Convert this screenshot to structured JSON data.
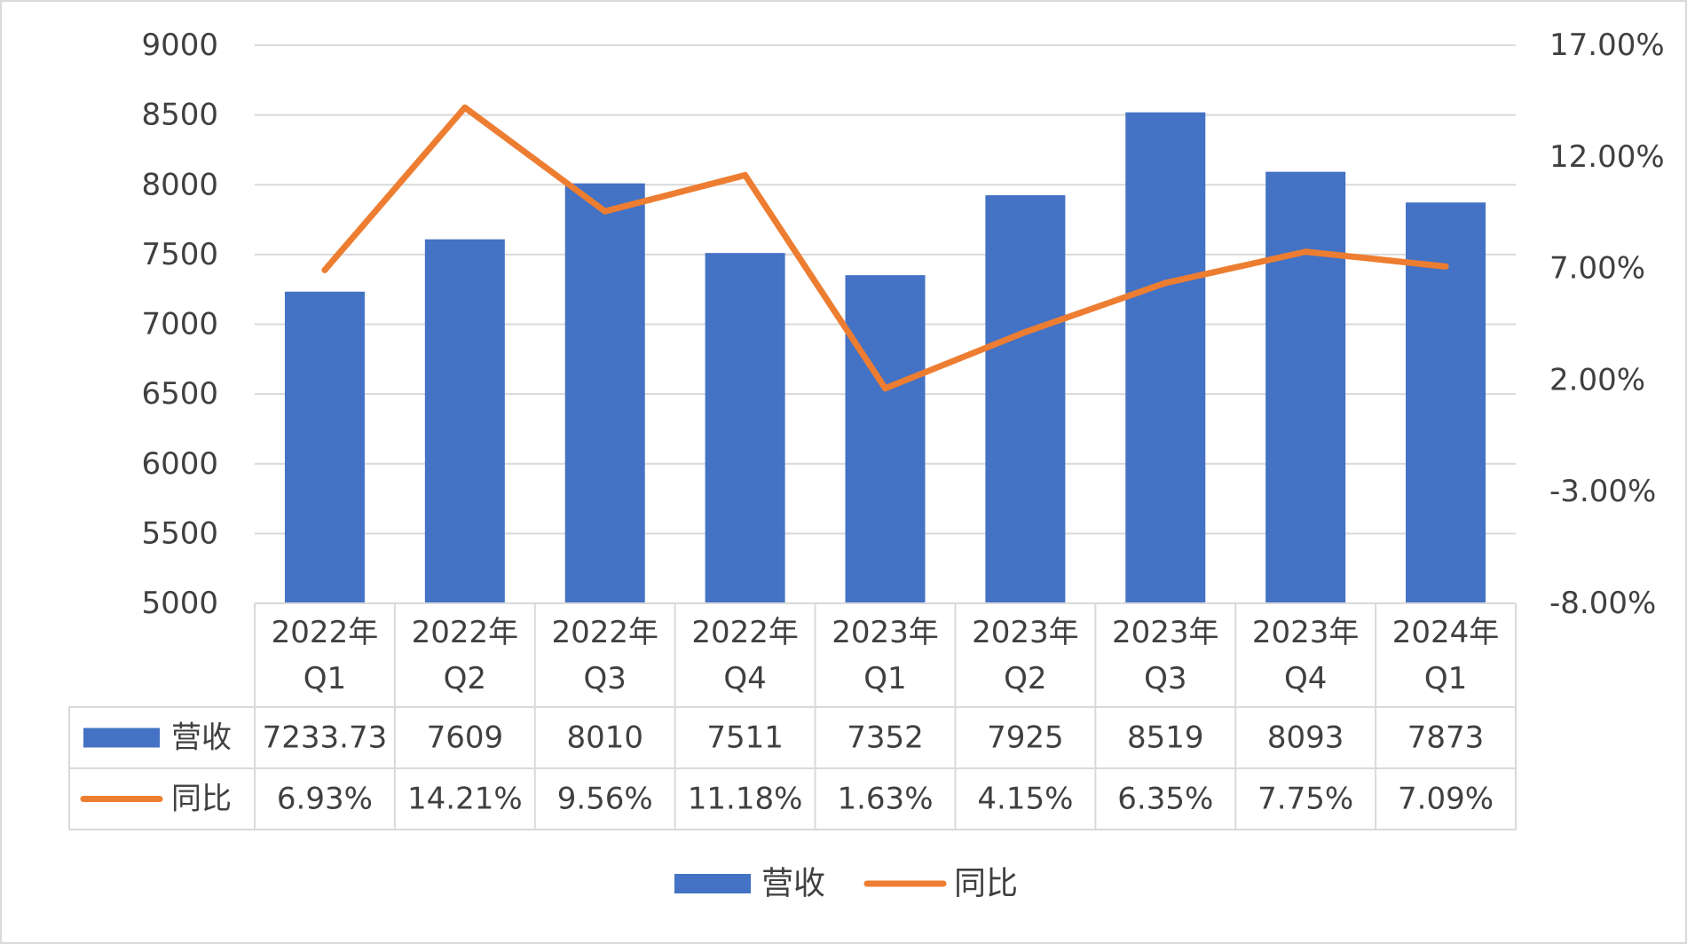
{
  "chart_data": {
    "type": "bar",
    "categories": [
      "2022年 Q1",
      "2022年 Q2",
      "2022年 Q3",
      "2022年 Q4",
      "2023年 Q1",
      "2023年 Q2",
      "2023年 Q3",
      "2023年 Q4",
      "2024年 Q1"
    ],
    "category_lines": [
      [
        "2022年",
        "Q1"
      ],
      [
        "2022年",
        "Q2"
      ],
      [
        "2022年",
        "Q3"
      ],
      [
        "2022年",
        "Q4"
      ],
      [
        "2023年",
        "Q1"
      ],
      [
        "2023年",
        "Q2"
      ],
      [
        "2023年",
        "Q3"
      ],
      [
        "2023年",
        "Q4"
      ],
      [
        "2024年",
        "Q1"
      ]
    ],
    "series": [
      {
        "name": "营收",
        "type": "bar",
        "axis": "left",
        "color": "#4472C4",
        "values": [
          7233.73,
          7609,
          8010,
          7511,
          7352,
          7925,
          8519,
          8093,
          7873
        ],
        "labels": [
          "7233.73",
          "7609",
          "8010",
          "7511",
          "7352",
          "7925",
          "8519",
          "8093",
          "7873"
        ]
      },
      {
        "name": "同比",
        "type": "line",
        "axis": "right",
        "color": "#ED7D31",
        "values": [
          6.93,
          14.21,
          9.56,
          11.18,
          1.63,
          4.15,
          6.35,
          7.75,
          7.09
        ],
        "labels": [
          "6.93%",
          "14.21%",
          "9.56%",
          "11.18%",
          "1.63%",
          "4.15%",
          "6.35%",
          "7.75%",
          "7.09%"
        ]
      }
    ],
    "y_left": {
      "lim": [
        5000,
        9000
      ],
      "ticks": [
        5000,
        5500,
        6000,
        6500,
        7000,
        7500,
        8000,
        8500,
        9000
      ],
      "tick_labels": [
        "5000",
        "5500",
        "6000",
        "6500",
        "7000",
        "7500",
        "8000",
        "8500",
        "9000"
      ]
    },
    "y_right": {
      "lim": [
        -8,
        17
      ],
      "ticks": [
        -8,
        -3,
        2,
        7,
        12,
        17
      ],
      "tick_labels": [
        "-8.00%",
        "-3.00%",
        "2.00%",
        "7.00%",
        "12.00%",
        "17.00%"
      ]
    },
    "grid": true,
    "data_table": true,
    "legend": {
      "position": "bottom",
      "items": [
        {
          "name": "营收",
          "marker": "bar",
          "color": "#4472C4"
        },
        {
          "name": "同比",
          "marker": "line",
          "color": "#ED7D31"
        }
      ]
    }
  }
}
